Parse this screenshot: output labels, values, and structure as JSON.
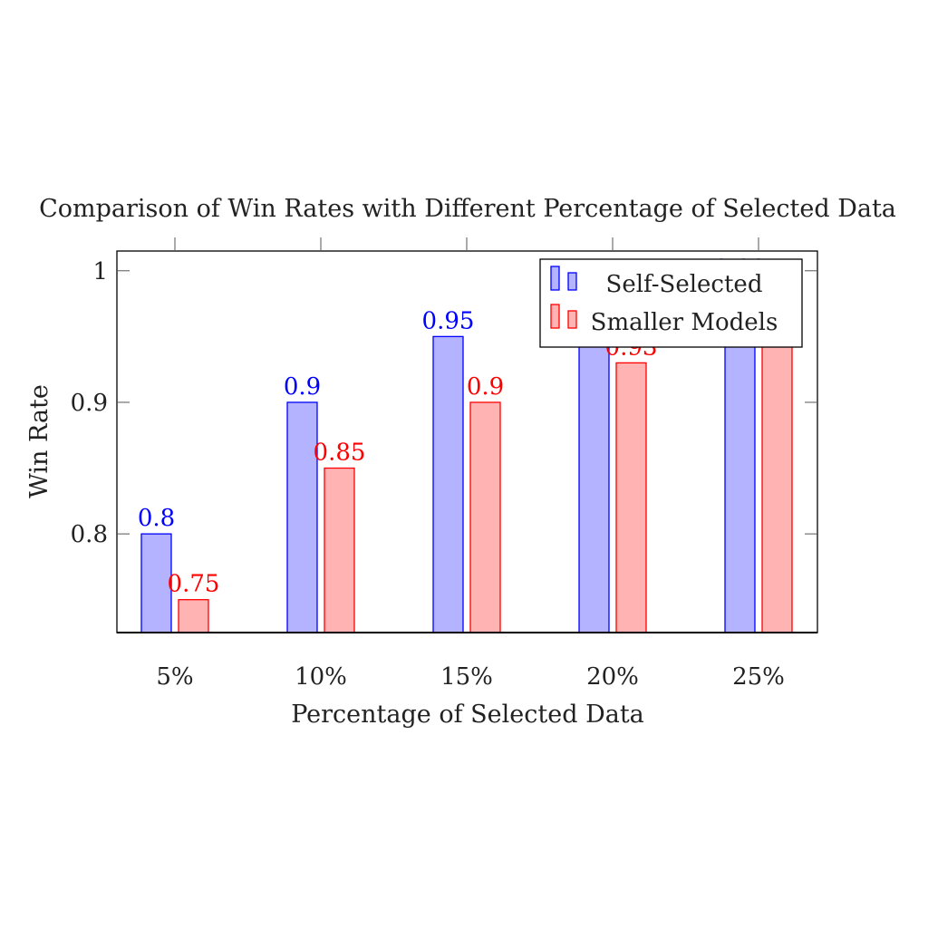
{
  "chart_data": {
    "type": "bar",
    "title": "Comparison of Win Rates with Different Percentage of Selected Data",
    "xlabel": "Percentage of Selected Data",
    "ylabel": "Win Rate",
    "categories": [
      "5%",
      "10%",
      "15%",
      "20%",
      "25%"
    ],
    "ylim": [
      0.725,
      1.015
    ],
    "yticks": [
      0.8,
      0.9,
      1
    ],
    "ytick_labels": [
      "0.8",
      "0.9",
      "1"
    ],
    "grid": false,
    "legend_position": "top-right",
    "series": [
      {
        "name": "Self-Selected",
        "values": [
          0.8,
          0.9,
          0.95,
          0.97,
          0.99
        ],
        "labels": [
          "0.8",
          "0.9",
          "0.95",
          "0.97",
          "0.99"
        ],
        "fill": "#b3b3ff",
        "stroke": "#0000ff",
        "label_color": "#0000ff"
      },
      {
        "name": "Smaller Models",
        "values": [
          0.75,
          0.85,
          0.9,
          0.93,
          0.95
        ],
        "labels": [
          "0.75",
          "0.85",
          "0.9",
          "0.93",
          "0.95"
        ],
        "fill": "#ffb3b3",
        "stroke": "#ff0000",
        "label_color": "#ff0000"
      }
    ]
  }
}
